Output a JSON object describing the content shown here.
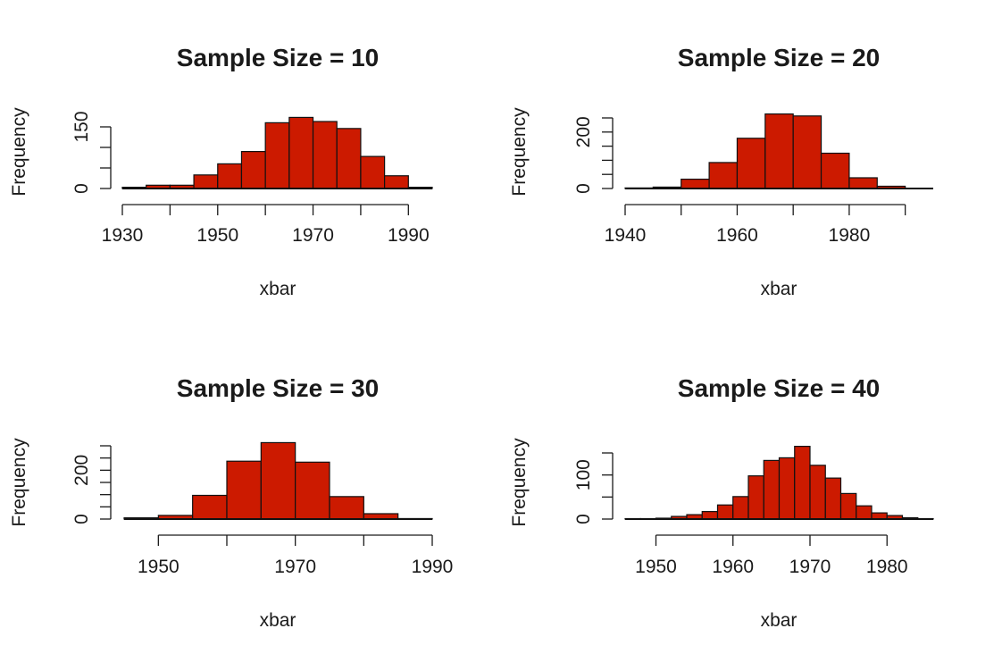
{
  "page": {
    "background": "#ffffff",
    "bar_color": "#cc1a00",
    "bar_border": "#111111"
  },
  "chart_data": [
    {
      "type": "histogram",
      "title": "Sample Size = 10",
      "xlabel": "xbar",
      "ylabel": "Frequency",
      "xlim": [
        1930,
        1995
      ],
      "ylim": [
        0,
        150
      ],
      "x_ticks": [
        1930,
        1940,
        1950,
        1960,
        1970,
        1980,
        1990
      ],
      "x_tick_labels": [
        "1930",
        "1950",
        "1970",
        "1990"
      ],
      "y_ticks": [
        0,
        50,
        100,
        150
      ],
      "y_tick_labels": [
        "0",
        "150"
      ],
      "bin_edges": [
        1930,
        1935,
        1940,
        1945,
        1950,
        1955,
        1960,
        1965,
        1970,
        1975,
        1980,
        1985,
        1990,
        1995
      ],
      "counts": [
        3,
        8,
        8,
        33,
        60,
        90,
        160,
        173,
        163,
        146,
        78,
        31,
        3
      ]
    },
    {
      "type": "histogram",
      "title": "Sample Size = 20",
      "xlabel": "xbar",
      "ylabel": "Frequency",
      "xlim": [
        1940,
        1995
      ],
      "ylim": [
        0,
        250
      ],
      "x_ticks": [
        1940,
        1950,
        1960,
        1970,
        1980,
        1990
      ],
      "x_tick_labels": [
        "1940",
        "1960",
        "1980"
      ],
      "y_ticks": [
        0,
        50,
        100,
        150,
        200,
        250
      ],
      "y_tick_labels": [
        "0",
        "200"
      ],
      "bin_edges": [
        1940,
        1945,
        1950,
        1955,
        1960,
        1965,
        1970,
        1975,
        1980,
        1985,
        1990,
        1995
      ],
      "counts": [
        2,
        5,
        33,
        92,
        178,
        264,
        257,
        125,
        38,
        8,
        0
      ]
    },
    {
      "type": "histogram",
      "title": "Sample Size = 30",
      "xlabel": "xbar",
      "ylabel": "Frequency",
      "xlim": [
        1945,
        1990
      ],
      "ylim": [
        0,
        300
      ],
      "x_ticks": [
        1950,
        1960,
        1970,
        1980,
        1990
      ],
      "x_tick_labels": [
        "1950",
        "1970",
        "1990"
      ],
      "y_ticks": [
        0,
        50,
        100,
        150,
        200,
        250,
        300
      ],
      "y_tick_labels": [
        "0",
        "200"
      ],
      "bin_edges": [
        1945,
        1950,
        1955,
        1960,
        1965,
        1970,
        1975,
        1980,
        1985,
        1990
      ],
      "counts": [
        5,
        15,
        97,
        237,
        313,
        233,
        92,
        22,
        2
      ]
    },
    {
      "type": "histogram",
      "title": "Sample Size = 40",
      "xlabel": "xbar",
      "ylabel": "Frequency",
      "xlim": [
        1946,
        1986
      ],
      "ylim": [
        0,
        150
      ],
      "x_ticks": [
        1950,
        1960,
        1970,
        1980
      ],
      "x_tick_labels": [
        "1950",
        "1960",
        "1970",
        "1980"
      ],
      "y_ticks": [
        0,
        50,
        100,
        150
      ],
      "y_tick_labels": [
        "0",
        "100"
      ],
      "bin_edges": [
        1946,
        1948,
        1950,
        1952,
        1954,
        1956,
        1958,
        1960,
        1962,
        1964,
        1966,
        1968,
        1970,
        1972,
        1974,
        1976,
        1978,
        1980,
        1982,
        1984,
        1986
      ],
      "counts": [
        1,
        1,
        2,
        6,
        10,
        17,
        32,
        51,
        98,
        133,
        139,
        165,
        122,
        93,
        58,
        30,
        14,
        8,
        3,
        1
      ]
    }
  ]
}
